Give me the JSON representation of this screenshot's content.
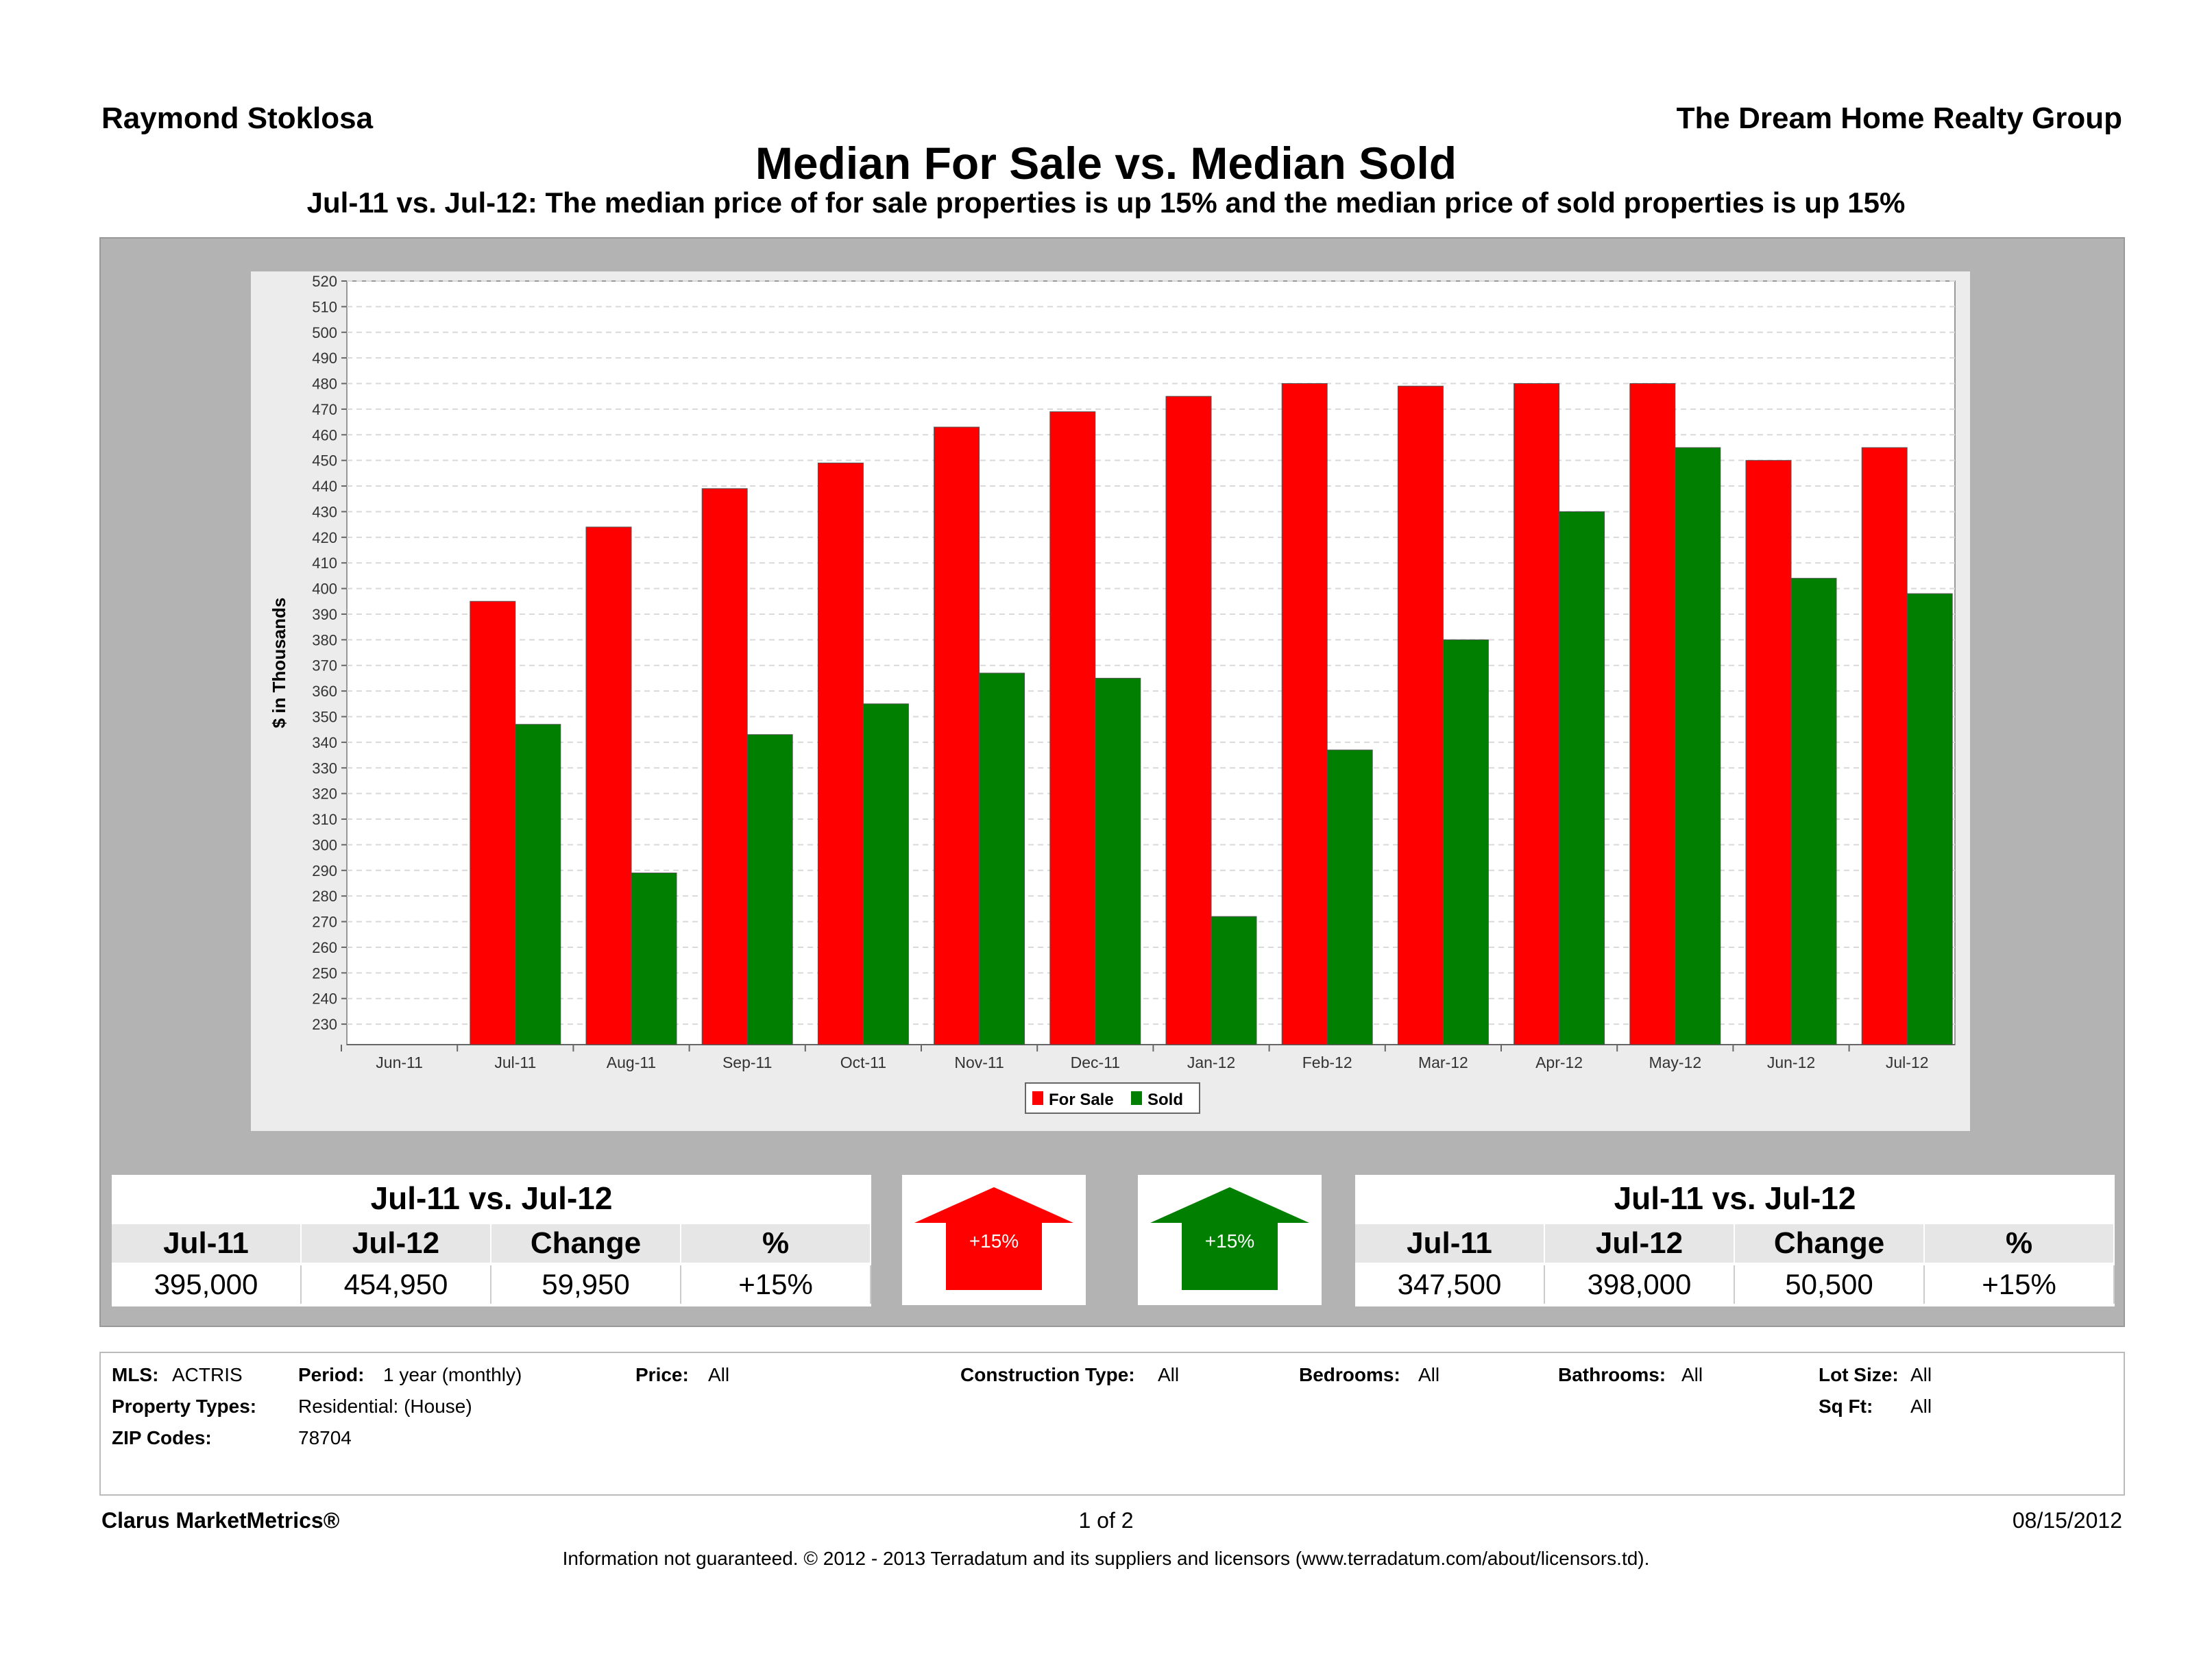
{
  "header": {
    "agent": "Raymond Stoklosa",
    "company": "The Dream Home Realty Group",
    "title": "Median For Sale vs. Median Sold",
    "subtitle": "Jul-11 vs. Jul-12:  The median price of for sale properties is up 15% and the median price of sold properties is up 15%"
  },
  "chart_data": {
    "type": "bar",
    "title": "",
    "xlabel": "",
    "ylabel": "$ in Thousands",
    "ylim": [
      222,
      520
    ],
    "yticks": [
      230,
      240,
      250,
      260,
      270,
      280,
      290,
      300,
      310,
      320,
      330,
      340,
      350,
      360,
      370,
      380,
      390,
      400,
      410,
      420,
      430,
      440,
      450,
      460,
      470,
      480,
      490,
      500,
      510,
      520
    ],
    "categories": [
      "Jun-11",
      "Jul-11",
      "Aug-11",
      "Sep-11",
      "Oct-11",
      "Nov-11",
      "Dec-11",
      "Jan-12",
      "Feb-12",
      "Mar-12",
      "Apr-12",
      "May-12",
      "Jun-12",
      "Jul-12"
    ],
    "series": [
      {
        "name": "For Sale",
        "color": "#ff0000",
        "values": [
          null,
          395,
          424,
          439,
          449,
          463,
          469,
          475,
          480,
          479,
          480,
          480,
          450,
          455
        ]
      },
      {
        "name": "Sold",
        "color": "#007f00",
        "values": [
          null,
          347,
          289,
          343,
          355,
          367,
          365,
          272,
          337,
          380,
          430,
          455,
          404,
          398
        ]
      }
    ],
    "grid": true,
    "legend": "bottom-center"
  },
  "for_sale_stats": {
    "heading": "Jul-11 vs. Jul-12",
    "columns": [
      "Jul-11",
      "Jul-12",
      "Change",
      "%"
    ],
    "values": [
      "395,000",
      "454,950",
      "59,950",
      "+15%"
    ],
    "arrow_label": "+15%",
    "arrow_color": "#ff0000"
  },
  "sold_stats": {
    "heading": "Jul-11 vs. Jul-12",
    "columns": [
      "Jul-11",
      "Jul-12",
      "Change",
      "%"
    ],
    "values": [
      "347,500",
      "398,000",
      "50,500",
      "+15%"
    ],
    "arrow_label": "+15%",
    "arrow_color": "#007f00"
  },
  "filters": {
    "mls_label": "MLS:",
    "mls": "ACTRIS",
    "period_label": "Period:",
    "period": "1 year (monthly)",
    "price_label": "Price:",
    "price": "All",
    "construction_label": "Construction Type:",
    "construction": "All",
    "bedrooms_label": "Bedrooms:",
    "bedrooms": "All",
    "bathrooms_label": "Bathrooms:",
    "bathrooms": "All",
    "lot_label": "Lot Size:",
    "lot": "All",
    "ptype_label": "Property Types:",
    "ptype": "Residential: (House)",
    "sqft_label": "Sq Ft:",
    "sqft": "All",
    "zip_label": "ZIP Codes:",
    "zip": "78704"
  },
  "footer": {
    "brand": "Clarus MarketMetrics®",
    "page": "1 of 2",
    "date": "08/15/2012",
    "disclaimer": "Information not guaranteed.  © 2012 - 2013 Terradatum and its suppliers and licensors (www.terradatum.com/about/licensors.td)."
  }
}
